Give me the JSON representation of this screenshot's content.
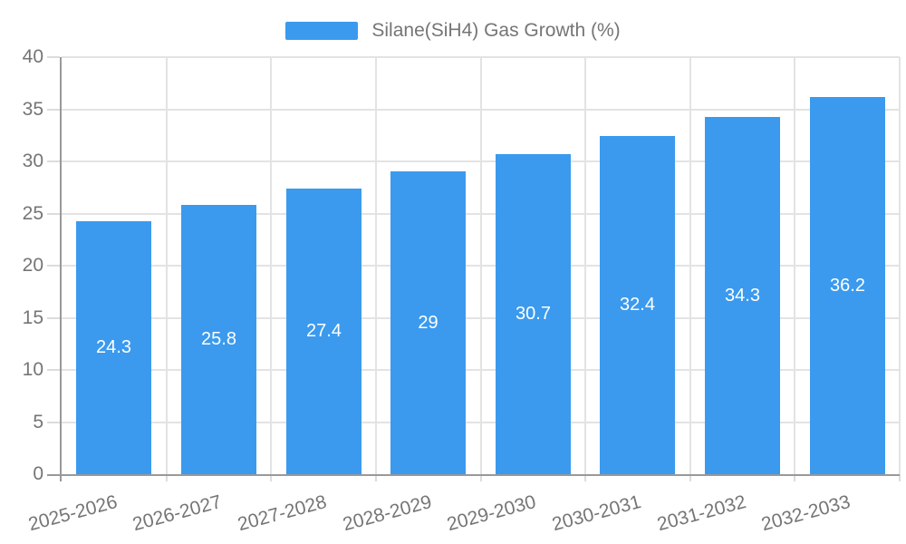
{
  "chart_data": {
    "type": "bar",
    "series_name": "Silane(SiH4) Gas Growth (%)",
    "categories": [
      "2025-2026",
      "2026-2027",
      "2027-2028",
      "2028-2029",
      "2029-2030",
      "2030-2031",
      "2031-2032",
      "2032-2033"
    ],
    "values": [
      24.3,
      25.8,
      27.4,
      29,
      30.7,
      32.4,
      34.3,
      36.2
    ],
    "title": "",
    "xlabel": "",
    "ylabel": "",
    "ylim": [
      0,
      40
    ],
    "yticks": [
      0,
      5,
      10,
      15,
      20,
      25,
      30,
      35,
      40
    ],
    "grid": "horizontal-and-vertical",
    "legend_position": "top-center",
    "bar_label_position": "inside-center",
    "x_label_rotation_deg": -15,
    "colors": {
      "bar": "#3B9AEE",
      "axis": "#999999",
      "grid": "#E3E3E3",
      "tick": "#DCDCDC",
      "text": "#757575",
      "value_label": "#FFFFFF",
      "background": "#FFFFFF"
    }
  }
}
